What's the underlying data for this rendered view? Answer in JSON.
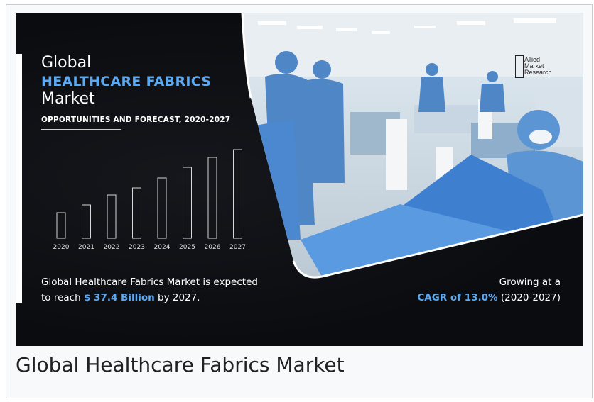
{
  "banner": {
    "title_line1": "Global",
    "title_line2": "HEALTHCARE FABRICS",
    "title_line3": "Market",
    "subtitle": "OPPORTUNITIES AND FORECAST, 2020-2027",
    "expect_line1": "Global Healthcare Fabrics Market is expected",
    "expect_pre": "to reach ",
    "expect_value": "$ 37.4 Billion",
    "expect_post": " by 2027.",
    "grow_line1": "Growing at a",
    "grow_value": "CAGR of 13.0%",
    "grow_post": " (2020-2027)",
    "logo_lines": [
      "Allied",
      "Market",
      "Research"
    ],
    "accent_color": "#5aa9f2"
  },
  "chart_data": {
    "type": "bar",
    "categories": [
      "2020",
      "2021",
      "2022",
      "2023",
      "2024",
      "2025",
      "2026",
      "2027"
    ],
    "values": [
      36,
      47,
      61,
      71,
      85,
      100,
      114,
      125
    ],
    "title": "",
    "xlabel": "",
    "ylabel": "",
    "ylim": [
      0,
      125
    ],
    "grid": false,
    "legend": "none"
  },
  "caption": "Global Healthcare Fabrics Market"
}
